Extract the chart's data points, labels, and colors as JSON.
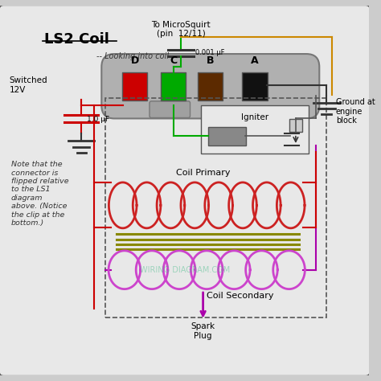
{
  "title": "LS2 Coil",
  "bg_color": "#e8e8e8",
  "outer_border_color": "#555555",
  "text_color": "#000000",
  "microquirt_label": "To MicroSquirt\n(pin  12/11)",
  "cap_label": "0.001 μF",
  "cap2_label": "1.0 μF",
  "switched_label": "Switched\n12V",
  "ground_label": "Ground at\nengine\nblock",
  "coil_primary_label": "Coil Primary",
  "coil_secondary_label": "Coil Secondary",
  "igniter_label": "Igniter",
  "spark_plug_label": "Spark\nPlug",
  "looking_label": "-- Looking into coil --",
  "note_label": "Note that the\nconnector is\nflipped relative\nto the LS1\ndiagram\nabove. (Notice\nthe clip at the\nbottom.)",
  "connector_labels": [
    "D",
    "C",
    "B",
    "A"
  ],
  "connector_colors": [
    "#cc0000",
    "#00aa00",
    "#5c2a00",
    "#111111"
  ],
  "primary_coil_color": "#cc2222",
  "secondary_coil_color": "#cc44cc",
  "iron_core_color": "#888800",
  "wire_red": "#cc0000",
  "wire_green": "#00aa00",
  "wire_brown": "#cc8800",
  "wire_black": "#000000",
  "wire_purple": "#aa00aa",
  "dashed_box_color": "#555555",
  "watermark": "WIRING DIAGRAM.COM"
}
